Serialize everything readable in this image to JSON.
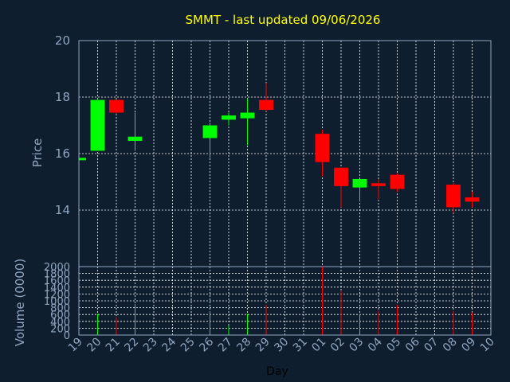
{
  "chart_data": {
    "type": "candlestick",
    "title": "SMMT - last updated 09/06/2026",
    "xlabel": "Day",
    "ylabel_price": "Price",
    "ylabel_volume": "Volume (0000)",
    "x_ticks": [
      "19",
      "20",
      "21",
      "22",
      "23",
      "24",
      "25",
      "26",
      "27",
      "28",
      "29",
      "30",
      "31",
      "01",
      "02",
      "03",
      "04",
      "05",
      "06",
      "07",
      "08",
      "09",
      "10"
    ],
    "price_ylim": [
      12,
      20
    ],
    "price_ticks": [
      14,
      16,
      18,
      20
    ],
    "volume_ylim": [
      0,
      2000
    ],
    "volume_ticks": [
      0,
      200,
      400,
      600,
      800,
      1000,
      1200,
      1400,
      1600,
      1800,
      2000
    ],
    "up_color": "#00ff00",
    "down_color": "#ff0000",
    "candles": [
      {
        "day": "19",
        "open": 15.8,
        "close": 15.85,
        "high": 15.85,
        "low": 15.8,
        "volume": 0
      },
      {
        "day": "20",
        "open": 16.1,
        "close": 17.9,
        "high": 17.9,
        "low": 16.1,
        "volume": 620
      },
      {
        "day": "21",
        "open": 17.9,
        "close": 17.45,
        "high": 17.9,
        "low": 17.4,
        "volume": 520
      },
      {
        "day": "22",
        "open": 16.45,
        "close": 16.6,
        "high": 17.45,
        "low": 16.1,
        "volume": 900
      },
      {
        "day": "26",
        "open": 16.55,
        "close": 17.0,
        "high": 17.1,
        "low": 15.85,
        "volume": 700
      },
      {
        "day": "27",
        "open": 17.2,
        "close": 17.35,
        "high": 17.45,
        "low": 17.0,
        "volume": 280
      },
      {
        "day": "28",
        "open": 17.25,
        "close": 17.45,
        "high": 17.95,
        "low": 16.3,
        "volume": 620
      },
      {
        "day": "29",
        "open": 17.9,
        "close": 17.55,
        "high": 18.5,
        "low": 17.5,
        "volume": 880
      },
      {
        "day": "01",
        "open": 16.7,
        "close": 15.7,
        "high": 16.85,
        "low": 15.2,
        "volume": 2000
      },
      {
        "day": "02",
        "open": 15.5,
        "close": 14.85,
        "high": 15.5,
        "low": 14.1,
        "volume": 1280
      },
      {
        "day": "03",
        "open": 14.8,
        "close": 15.1,
        "high": 15.1,
        "low": 14.3,
        "volume": 620
      },
      {
        "day": "04",
        "open": 14.95,
        "close": 14.85,
        "high": 15.1,
        "low": 14.4,
        "volume": 700
      },
      {
        "day": "05",
        "open": 15.25,
        "close": 14.75,
        "high": 15.3,
        "low": 14.65,
        "volume": 880
      },
      {
        "day": "08",
        "open": 14.9,
        "close": 14.1,
        "high": 14.95,
        "low": 13.9,
        "volume": 700
      },
      {
        "day": "09",
        "open": 14.45,
        "close": 14.3,
        "high": 14.65,
        "low": 14.1,
        "volume": 660
      }
    ]
  }
}
